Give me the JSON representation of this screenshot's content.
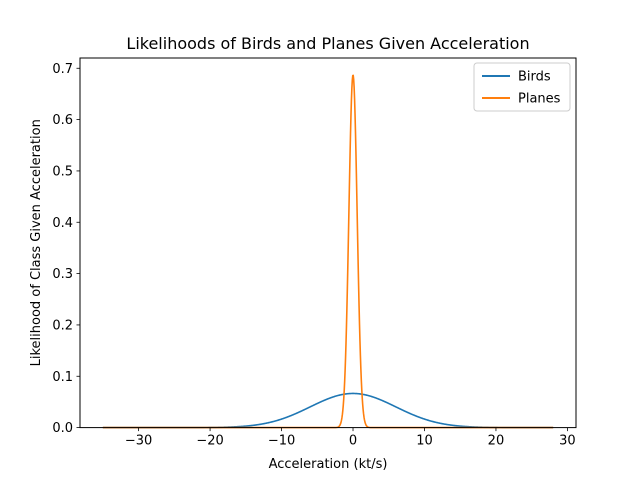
{
  "chart_data": {
    "type": "line",
    "title": "Likelihoods of Birds and Planes Given Acceleration",
    "xlabel": "Acceleration (kt/s)",
    "ylabel": "Likelihood of Class Given Acceleration",
    "xlim": [
      -38.2,
      31.2
    ],
    "ylim": [
      0,
      0.72
    ],
    "x_ticks": [
      -30,
      -20,
      -10,
      0,
      10,
      20,
      30
    ],
    "x_tick_labels": [
      "−30",
      "−20",
      "−10",
      "0",
      "10",
      "20",
      "30"
    ],
    "y_ticks": [
      0.0,
      0.1,
      0.2,
      0.3,
      0.4,
      0.5,
      0.6,
      0.7
    ],
    "y_tick_labels": [
      "0.0",
      "0.1",
      "0.2",
      "0.3",
      "0.4",
      "0.5",
      "0.6",
      "0.7"
    ],
    "grid": false,
    "legend_position": "top-right",
    "x_domain": [
      -35,
      28
    ],
    "series": [
      {
        "name": "Birds",
        "color": "#1f77b4",
        "distribution": "normal",
        "mean": 0,
        "std_dev": 6,
        "peak": 0.0665
      },
      {
        "name": "Planes",
        "color": "#ff7f0e",
        "distribution": "normal",
        "mean": 0,
        "std_dev": 0.58,
        "peak": 0.687
      }
    ]
  }
}
